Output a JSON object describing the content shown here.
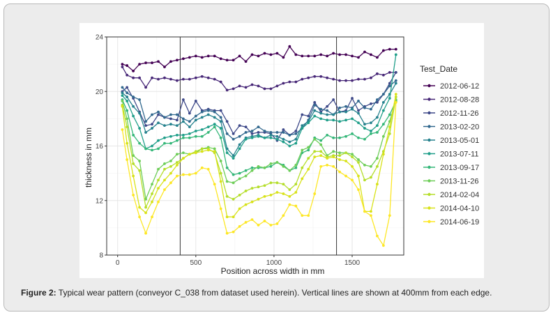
{
  "figure": {
    "caption_label": "Figure 2:",
    "caption_text": " Typical wear pattern (conveyor C_038 from dataset used herein). Vertical lines are shown at 400mm from each edge."
  },
  "chart_data": {
    "type": "line",
    "xlabel": "Position across width in mm",
    "ylabel": "thickness in mm",
    "xlim": [
      -70,
      1830
    ],
    "ylim": [
      8,
      24
    ],
    "xticks": [
      0,
      500,
      1000,
      1500
    ],
    "yticks": [
      8,
      12,
      16,
      20,
      24
    ],
    "grid": true,
    "vlines": [
      400,
      1400
    ],
    "legend_title": "Test_Date",
    "legend_position": "right",
    "x": [
      30,
      60,
      100,
      140,
      180,
      220,
      260,
      300,
      340,
      380,
      420,
      460,
      500,
      540,
      580,
      620,
      660,
      700,
      740,
      780,
      820,
      860,
      900,
      940,
      980,
      1020,
      1060,
      1100,
      1140,
      1180,
      1220,
      1260,
      1300,
      1340,
      1380,
      1420,
      1460,
      1500,
      1540,
      1580,
      1620,
      1660,
      1700,
      1740,
      1780
    ],
    "series": [
      {
        "name": "2012-06-12",
        "color": "#440154",
        "values": [
          22.0,
          21.9,
          21.5,
          22.0,
          22.1,
          22.1,
          22.2,
          21.8,
          22.2,
          22.3,
          22.4,
          22.5,
          22.6,
          22.5,
          22.6,
          22.6,
          22.4,
          22.3,
          22.3,
          22.6,
          22.2,
          22.7,
          22.6,
          22.8,
          22.7,
          22.8,
          22.5,
          23.3,
          22.7,
          22.6,
          22.6,
          22.6,
          22.7,
          22.6,
          22.8,
          22.7,
          22.7,
          22.6,
          22.5,
          22.9,
          22.7,
          22.5,
          23.0,
          23.1,
          23.1
        ]
      },
      {
        "name": "2012-08-28",
        "color": "#482878",
        "values": [
          21.8,
          21.2,
          21.0,
          21.0,
          20.3,
          21.0,
          20.9,
          21.0,
          20.9,
          20.8,
          20.9,
          20.9,
          21.0,
          21.1,
          21.0,
          20.9,
          20.7,
          20.1,
          20.2,
          20.4,
          20.3,
          20.5,
          20.4,
          20.2,
          20.2,
          20.4,
          20.6,
          20.7,
          20.7,
          20.9,
          21.0,
          21.1,
          21.1,
          21.0,
          20.9,
          20.8,
          20.8,
          20.8,
          20.9,
          20.9,
          21.0,
          21.3,
          21.2,
          21.4,
          21.4
        ]
      },
      {
        "name": "2012-11-26",
        "color": "#3e4989",
        "values": [
          20.0,
          20.3,
          19.5,
          18.5,
          17.5,
          17.6,
          18.3,
          18.1,
          18.0,
          17.9,
          19.4,
          18.4,
          19.3,
          18.6,
          18.7,
          18.6,
          18.6,
          17.8,
          16.9,
          17.5,
          17.4,
          16.9,
          17.0,
          17.0,
          16.9,
          16.4,
          17.2,
          16.8,
          17.1,
          18.3,
          18.2,
          19.2,
          18.5,
          18.9,
          19.4,
          18.5,
          18.6,
          19.5,
          18.6,
          18.9,
          19.1,
          19.2,
          19.8,
          20.6,
          21.4
        ]
      },
      {
        "name": "2013-02-20",
        "color": "#31688e",
        "values": [
          20.3,
          19.9,
          19.6,
          19.4,
          17.8,
          18.3,
          18.5,
          18.1,
          18.3,
          18.3,
          18.0,
          17.8,
          18.2,
          18.5,
          18.6,
          18.5,
          18.1,
          16.9,
          16.5,
          16.7,
          17.0,
          17.1,
          17.4,
          17.1,
          17.0,
          17.0,
          17.0,
          16.8,
          16.9,
          17.3,
          17.9,
          19.0,
          18.7,
          18.6,
          18.3,
          18.8,
          18.9,
          18.8,
          19.3,
          18.8,
          18.7,
          19.4,
          19.8,
          20.4,
          20.8
        ]
      },
      {
        "name": "2013-05-01",
        "color": "#26828e",
        "values": [
          19.9,
          19.6,
          18.9,
          18.4,
          17.0,
          17.3,
          17.7,
          17.5,
          17.6,
          17.5,
          17.8,
          17.4,
          17.9,
          18.1,
          18.3,
          18.1,
          17.8,
          15.8,
          15.3,
          16.1,
          16.6,
          16.7,
          16.8,
          16.6,
          16.8,
          16.7,
          16.5,
          16.3,
          16.5,
          17.5,
          17.8,
          18.6,
          18.4,
          18.3,
          18.3,
          18.5,
          18.5,
          18.7,
          18.4,
          17.6,
          17.7,
          18.1,
          19.2,
          19.8,
          20.6
        ]
      },
      {
        "name": "2013-07-11",
        "color": "#1f9e89",
        "values": [
          19.7,
          19.3,
          18.2,
          17.3,
          15.8,
          16.0,
          16.4,
          16.6,
          16.7,
          16.8,
          16.8,
          16.9,
          17.1,
          17.2,
          17.4,
          17.6,
          17.3,
          15.5,
          15.1,
          15.8,
          16.5,
          16.6,
          16.7,
          16.6,
          16.6,
          16.5,
          16.3,
          16.0,
          16.2,
          17.3,
          17.7,
          18.2,
          18.0,
          17.9,
          17.9,
          17.8,
          17.9,
          18.0,
          17.7,
          17.3,
          17.1,
          17.5,
          18.6,
          19.5,
          22.7
        ]
      },
      {
        "name": "2013-09-17",
        "color": "#35b779",
        "values": [
          19.4,
          18.6,
          16.8,
          16.2,
          15.8,
          15.7,
          15.8,
          16.2,
          16.2,
          16.4,
          16.6,
          16.6,
          16.7,
          16.7,
          17.0,
          17.4,
          16.6,
          14.4,
          13.9,
          14.0,
          14.2,
          14.4,
          14.4,
          14.4,
          14.5,
          14.8,
          14.6,
          14.2,
          14.4,
          15.5,
          15.7,
          16.6,
          16.4,
          16.8,
          16.6,
          16.6,
          16.7,
          16.9,
          16.6,
          16.5,
          16.9,
          17.0,
          17.6,
          18.3,
          19.3
        ]
      },
      {
        "name": "2013-11-26",
        "color": "#6ece58",
        "values": [
          19.3,
          18.0,
          15.3,
          14.9,
          12.1,
          13.2,
          14.3,
          14.7,
          14.9,
          15.4,
          15.5,
          15.4,
          15.5,
          15.8,
          15.9,
          15.8,
          14.9,
          13.4,
          13.3,
          13.6,
          13.8,
          14.2,
          14.5,
          14.4,
          14.7,
          14.8,
          14.5,
          14.2,
          14.6,
          15.7,
          15.9,
          16.5,
          16.1,
          15.3,
          15.6,
          15.5,
          15.5,
          15.4,
          15.0,
          14.6,
          14.5,
          15.1,
          16.7,
          17.8,
          19.4
        ]
      },
      {
        "name": "2014-02-04",
        "color": "#b5de2b",
        "values": [
          19.0,
          17.4,
          14.7,
          14.2,
          11.5,
          12.5,
          13.5,
          14.3,
          14.5,
          14.8,
          15.1,
          15.4,
          15.6,
          15.8,
          15.8,
          15.5,
          14.0,
          12.3,
          12.1,
          12.4,
          12.7,
          12.9,
          13.0,
          13.1,
          13.3,
          13.3,
          13.2,
          12.8,
          13.2,
          14.4,
          15.1,
          15.6,
          15.6,
          15.2,
          15.3,
          15.3,
          15.5,
          15.2,
          14.8,
          13.5,
          13.7,
          14.5,
          15.6,
          16.9,
          19.6
        ]
      },
      {
        "name": "2014-04-10",
        "color": "#d8e219",
        "values": [
          18.9,
          16.2,
          13.8,
          11.5,
          11.1,
          11.9,
          12.9,
          13.5,
          14.0,
          14.6,
          15.1,
          15.4,
          15.5,
          15.6,
          15.7,
          15.6,
          13.4,
          10.8,
          10.8,
          11.4,
          11.7,
          11.9,
          12.1,
          12.3,
          12.4,
          12.6,
          12.5,
          12.3,
          12.6,
          13.6,
          14.3,
          15.2,
          15.3,
          15.1,
          15.2,
          15.0,
          14.9,
          14.5,
          13.8,
          11.2,
          11.2,
          13.2,
          15.4,
          17.4,
          19.8
        ]
      },
      {
        "name": "2014-06-19",
        "color": "#fde725",
        "values": [
          17.2,
          15.0,
          12.4,
          10.8,
          9.6,
          10.8,
          11.9,
          12.8,
          13.3,
          13.8,
          13.9,
          13.9,
          14.0,
          14.4,
          14.3,
          13.2,
          11.4,
          9.6,
          9.7,
          10.1,
          10.4,
          10.6,
          10.2,
          10.5,
          10.2,
          10.3,
          10.9,
          11.7,
          11.6,
          10.9,
          10.9,
          12.5,
          14.5,
          14.6,
          14.5,
          14.1,
          13.8,
          13.5,
          12.8,
          11.2,
          10.9,
          9.4,
          8.7,
          10.9,
          19.2
        ]
      }
    ]
  }
}
